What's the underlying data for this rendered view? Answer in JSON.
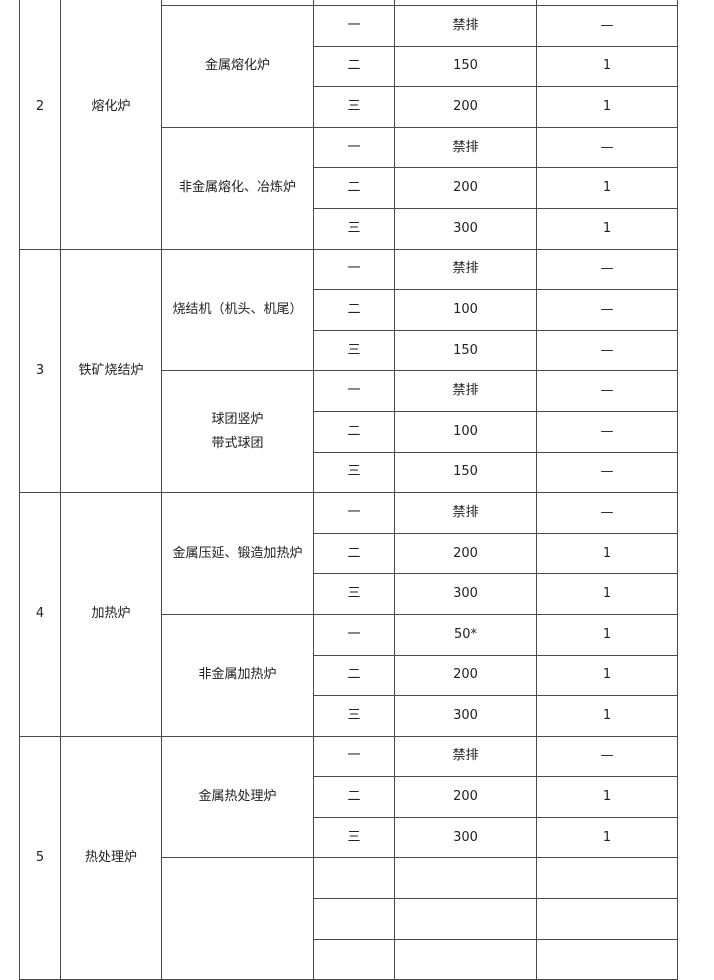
{
  "table": {
    "sections": [
      {
        "no": "2",
        "name": "熔化炉",
        "groups": [
          {
            "name": [
              ""
            ],
            "rows": [
              [
                "",
                "",
                ""
              ]
            ]
          },
          {
            "name": [
              "金属熔化炉"
            ],
            "rows": [
              [
                "一",
                "禁排",
                "—"
              ],
              [
                "二",
                "150",
                "1"
              ],
              [
                "三",
                "200",
                "1"
              ]
            ]
          },
          {
            "name": [
              "非金属熔化、冶炼炉"
            ],
            "rows": [
              [
                "一",
                "禁排",
                "—"
              ],
              [
                "二",
                "200",
                "1"
              ],
              [
                "三",
                "300",
                "1"
              ]
            ]
          }
        ]
      },
      {
        "no": "3",
        "name": "铁矿烧结炉",
        "groups": [
          {
            "name": [
              "烧结机（机头、机尾）"
            ],
            "rows": [
              [
                "一",
                "禁排",
                "—"
              ],
              [
                "二",
                "100",
                "—"
              ],
              [
                "三",
                "150",
                "—"
              ]
            ]
          },
          {
            "name": [
              "球团竖炉",
              "带式球团"
            ],
            "rows": [
              [
                "一",
                "禁排",
                "—"
              ],
              [
                "二",
                "100",
                "—"
              ],
              [
                "三",
                "150",
                "—"
              ]
            ]
          }
        ]
      },
      {
        "no": "4",
        "name": "加热炉",
        "groups": [
          {
            "name": [
              "金属压延、锻造加热炉"
            ],
            "rows": [
              [
                "一",
                "禁排",
                "—"
              ],
              [
                "二",
                "200",
                "1"
              ],
              [
                "三",
                "300",
                "1"
              ]
            ]
          },
          {
            "name": [
              "非金属加热炉"
            ],
            "rows": [
              [
                "一",
                "50*",
                "1"
              ],
              [
                "二",
                "200",
                "1"
              ],
              [
                "三",
                "300",
                "1"
              ]
            ]
          }
        ]
      },
      {
        "no": "5",
        "name": "热处理炉",
        "groups": [
          {
            "name": [
              "金属热处理炉"
            ],
            "rows": [
              [
                "一",
                "禁排",
                "—"
              ],
              [
                "二",
                "200",
                "1"
              ],
              [
                "三",
                "300",
                "1"
              ]
            ]
          },
          {
            "name": [
              ""
            ],
            "rows": [
              [
                "",
                "",
                ""
              ],
              [
                "",
                "",
                ""
              ],
              [
                "",
                "",
                ""
              ]
            ]
          }
        ]
      }
    ]
  }
}
